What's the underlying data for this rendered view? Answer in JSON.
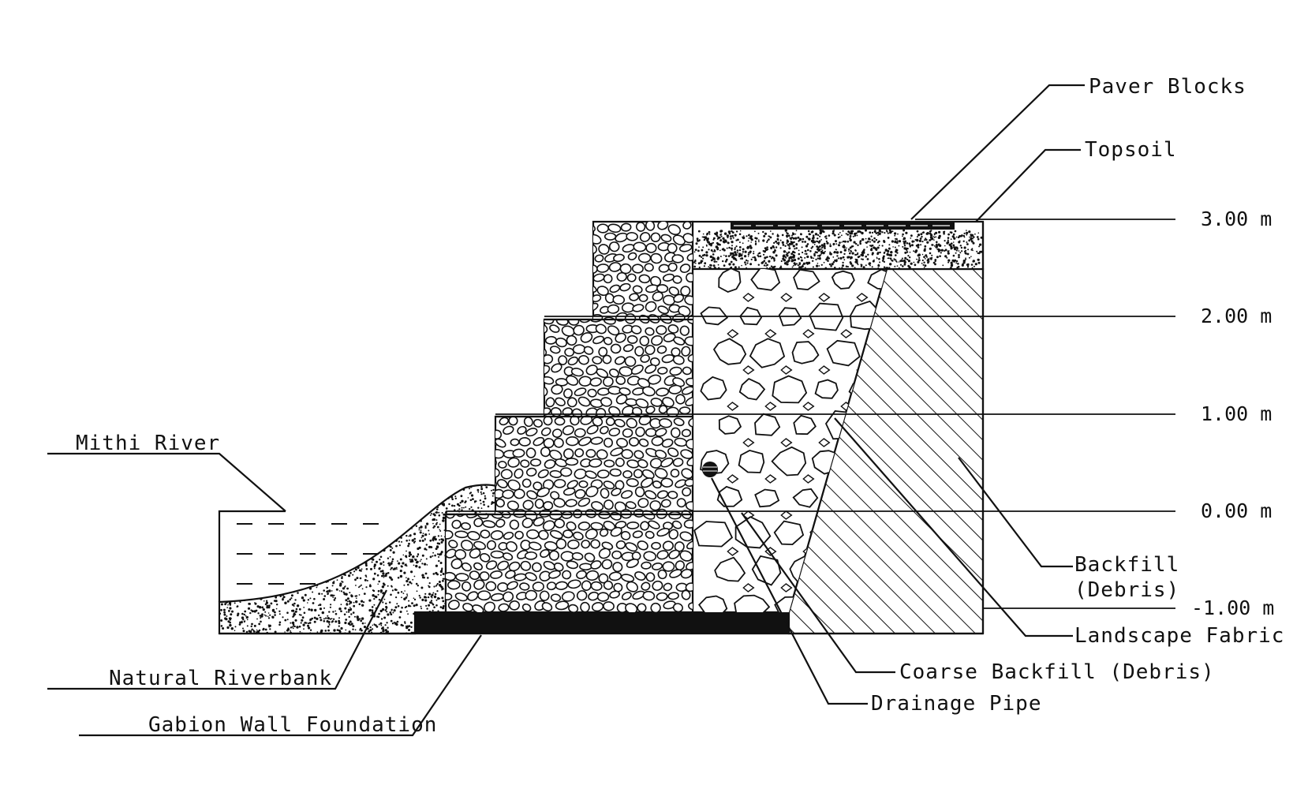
{
  "labels": {
    "paver_blocks": "Paver Blocks",
    "topsoil": "Topsoil",
    "mithi_river": "Mithi River",
    "backfill_line1": "Backfill",
    "backfill_line2": "(Debris)",
    "landscape_fabric": "Landscape Fabric",
    "coarse_backfill": "Coarse Backfill (Debris)",
    "drainage_pipe": "Drainage Pipe",
    "natural_riverbank": "Natural Riverbank",
    "gabion_wall_foundation": "Gabion Wall Foundation"
  },
  "levels": [
    "3.00  m",
    "2.00  m",
    "1.00  m",
    "0.00  m",
    "-1.00  m"
  ],
  "colors": {
    "ink": "#111111",
    "paper": "#ffffff"
  }
}
